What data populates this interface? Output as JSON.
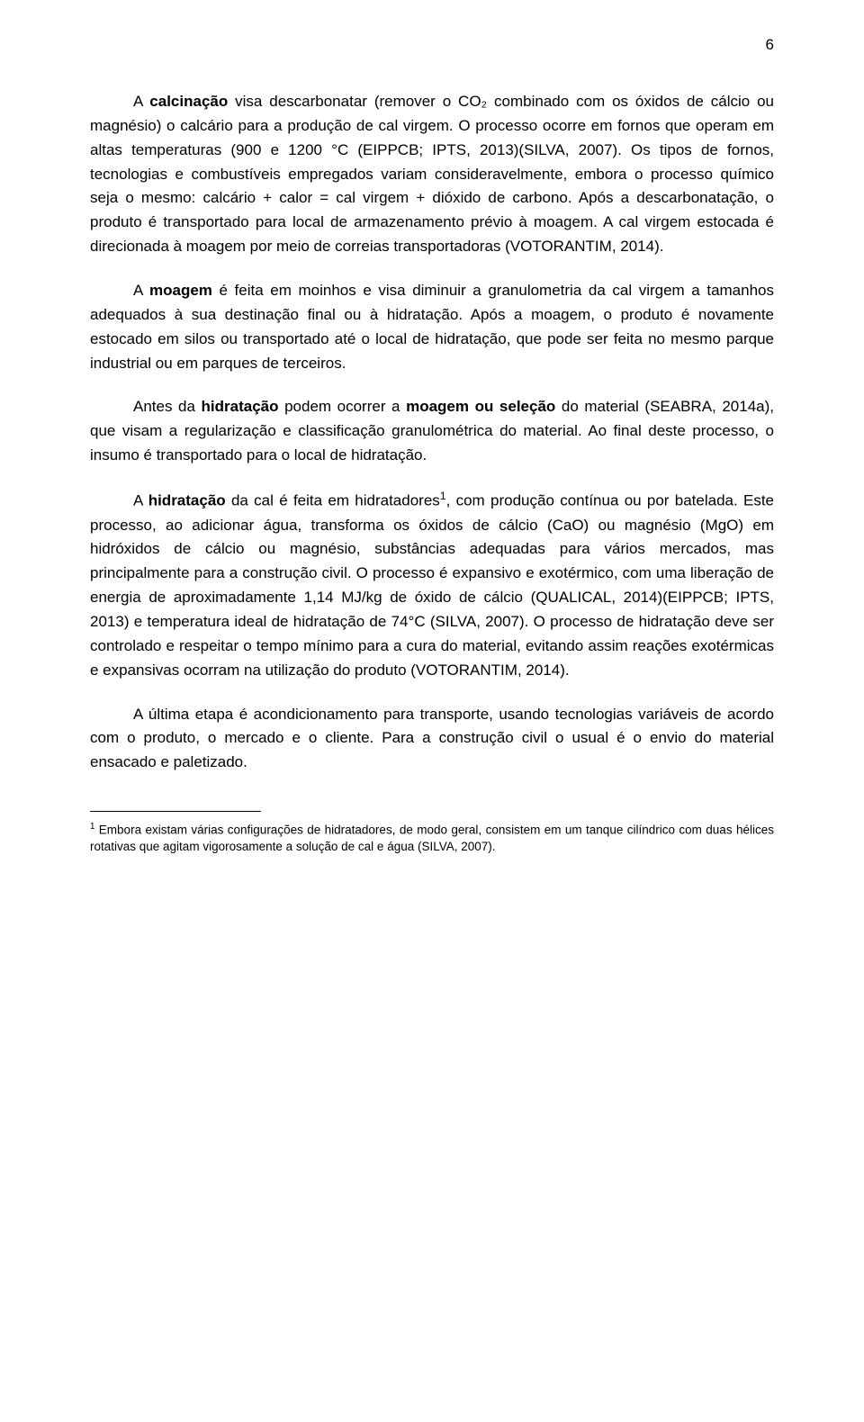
{
  "page_number": "6",
  "paragraphs": {
    "p1": {
      "pre": "A ",
      "b1": "calcinação",
      "post": " visa descarbonatar (remover o CO₂ combinado com os óxidos de cálcio ou magnésio) o calcário para a produção de cal virgem. O processo ocorre em fornos que operam em altas temperaturas (900 e 1200 °C (EIPPCB; IPTS, 2013)(SILVA, 2007). Os tipos de fornos, tecnologias e combustíveis empregados variam consideravelmente, embora o processo químico seja o mesmo: calcário + calor = cal virgem + dióxido de carbono. Após a descarbonatação, o produto é transportado para local de armazenamento prévio à moagem. A cal virgem estocada é direcionada à moagem por meio de correias transportadoras (VOTORANTIM, 2014)."
    },
    "p2": {
      "pre": "A ",
      "b1": "moagem",
      "post": " é feita em moinhos e visa diminuir a granulometria da cal virgem a tamanhos adequados à sua destinação final ou à hidratação. Após a moagem, o produto é novamente estocado em silos ou transportado até o local de hidratação, que pode ser feita no mesmo parque industrial ou em parques de terceiros."
    },
    "p3": {
      "pre": "Antes da ",
      "b1": "hidratação",
      "mid": " podem ocorrer a ",
      "b2": "moagem ou seleção",
      "post": " do material (SEABRA, 2014a), que visam a regularização e classificação granulométrica do material. Ao final deste processo, o insumo é transportado para o local de hidratação."
    },
    "p4": {
      "pre": "A ",
      "b1": "hidratação",
      "mid": " da cal é feita em hidratadores",
      "sup": "1",
      "post": ", com produção contínua ou por batelada. Este processo, ao adicionar água, transforma os óxidos de cálcio (CaO) ou magnésio (MgO) em hidróxidos de cálcio ou magnésio, substâncias adequadas para vários mercados, mas principalmente para a construção civil. O processo é expansivo e exotérmico, com uma liberação de energia de aproximadamente 1,14 MJ/kg de óxido de cálcio (QUALICAL, 2014)(EIPPCB; IPTS, 2013) e temperatura ideal de hidratação de 74°C (SILVA, 2007). O processo de hidratação deve ser controlado e respeitar o tempo mínimo para a cura do material, evitando assim reações exotérmicas e expansivas ocorram na utilização do produto (VOTORANTIM, 2014)."
    },
    "p5": {
      "text": "A última etapa é acondicionamento para transporte, usando tecnologias variáveis de acordo com o produto, o mercado e o cliente. Para a construção civil o usual é o envio do material ensacado e paletizado."
    }
  },
  "footnote": {
    "marker": "1",
    "text": " Embora existam várias configurações de hidratadores, de modo geral, consistem em um tanque cilíndrico com duas hélices rotativas que agitam vigorosamente a solução de cal e água (SILVA, 2007)."
  }
}
